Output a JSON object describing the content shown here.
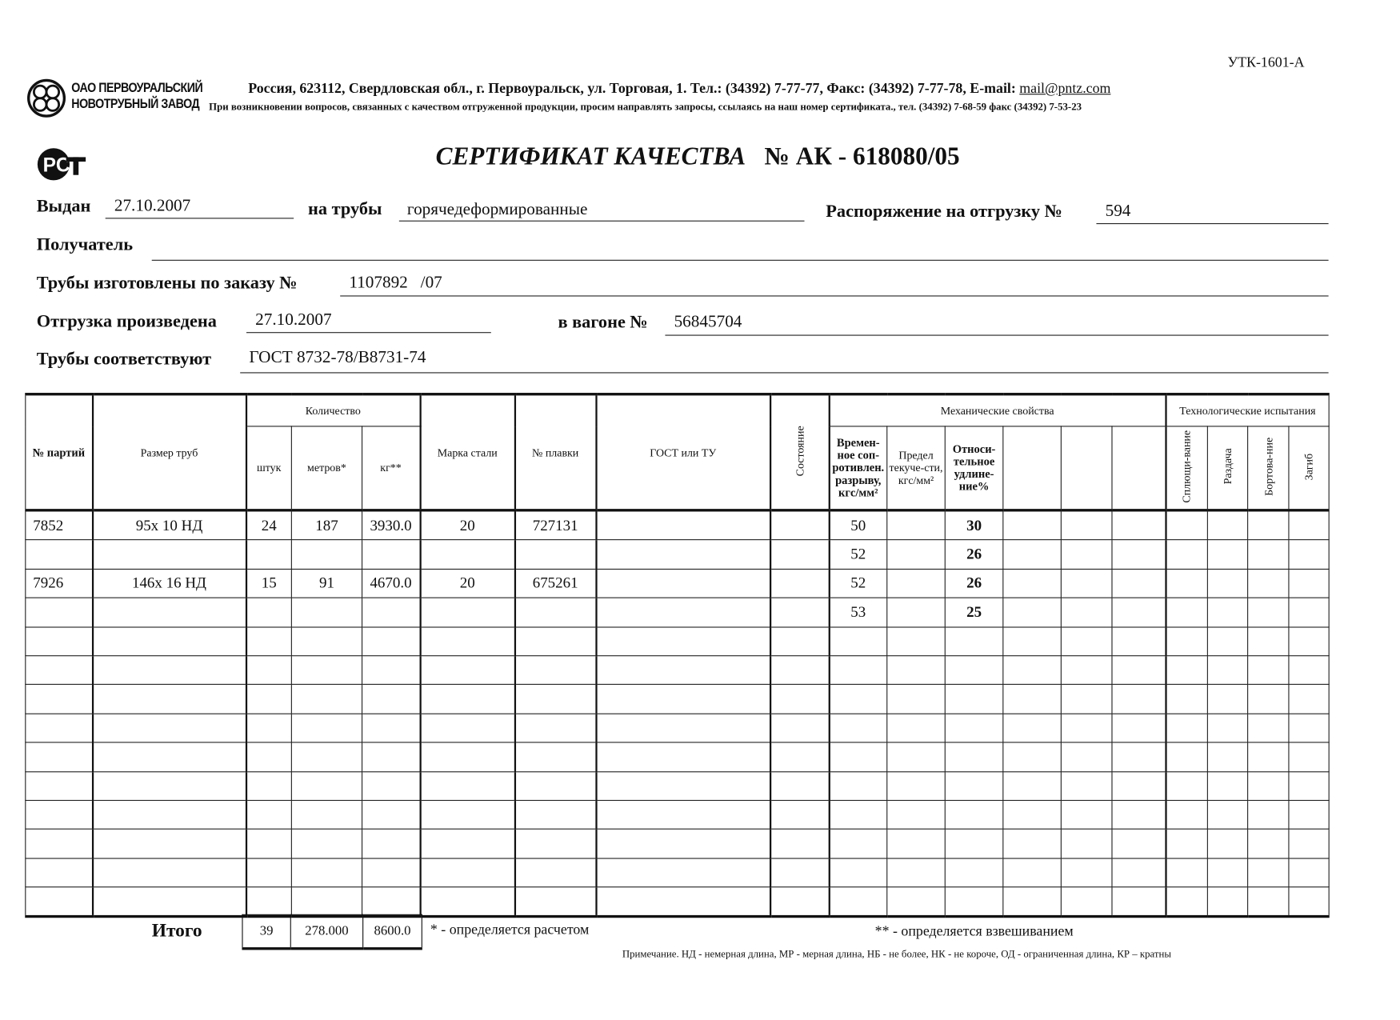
{
  "form_code": "УТК-1601-А",
  "company": {
    "line1": "ОАО ПЕРВОУРАЛЬСКИЙ",
    "line2": "НОВОТРУБНЫЙ  ЗАВОД"
  },
  "address": "Россия, 623112, Свердловская обл., г. Первоуральск, ул. Торговая, 1. Тел.: (34392) 7-77-77, Факс: (34392) 7-77-78,  E-mail: ",
  "email": "mail@pntz.com",
  "notice": "При возникновении вопросов, связанных с качеством отгруженной продукции, просим направлять запросы, ссылаясь на наш номер сертификата., тел. (34392) 7-68-59 факс (34392) 7-53-23",
  "logo_text": "PCT",
  "title": {
    "text": "СЕРТИФИКАТ КАЧЕСТВА",
    "number_prefix": "№  АК -",
    "number": "618080/05"
  },
  "fields": {
    "issued_label": "Выдан",
    "issued": "27.10.2007",
    "pipes_label": "на трубы",
    "pipes": "горячедеформированные",
    "order_label": "Распоряжение на отгрузку №",
    "order": "594",
    "recipient_label": "Получатель",
    "recipient": "",
    "made_label": "Трубы изготовлены по заказу №",
    "made": "1107892   /07",
    "shipped_label": "Отгрузка произведена",
    "shipped": "27.10.2007",
    "wagon_label": "в вагоне №",
    "wagon": "56845704",
    "conform_label": "Трубы соответствуют",
    "conform": "ГОСТ 8732-78/В8731-74"
  },
  "table": {
    "headers": {
      "batch": "№ партий",
      "size": "Размер труб",
      "quantity": "Количество",
      "pcs": "штук",
      "meters": "метров*",
      "kg": "кг**",
      "steel": "Марка стали",
      "heat": "№ плавки",
      "gost": "ГОСТ или ТУ",
      "state": "Состояние",
      "mech": "Механические свойства",
      "tensile": "Времен-ное соп-ротивлен. разрыву, кгс/мм²",
      "yield": "Предел текуче-сти, кгс/мм²",
      "elong": "Относи-тельное удлине-ние%",
      "tech": "Технологические испытания",
      "flatten": "Сплющи-вание",
      "expand": "Раздача",
      "flange": "Бортова-ние",
      "bend": "Загиб"
    },
    "rows": [
      [
        "7852",
        "95x 10 НД",
        "24",
        "187",
        "3930.0",
        "20",
        "727131",
        "",
        "",
        "50",
        "",
        "30",
        "",
        "",
        "",
        "",
        "",
        "",
        ""
      ],
      [
        "",
        "",
        "",
        "",
        "",
        "",
        "",
        "",
        "",
        "52",
        "",
        "26",
        "",
        "",
        "",
        "",
        "",
        "",
        ""
      ],
      [
        "7926",
        "146x 16 НД",
        "15",
        "91",
        "4670.0",
        "20",
        "675261",
        "",
        "",
        "52",
        "",
        "26",
        "",
        "",
        "",
        "",
        "",
        "",
        ""
      ],
      [
        "",
        "",
        "",
        "",
        "",
        "",
        "",
        "",
        "",
        "53",
        "",
        "25",
        "",
        "",
        "",
        "",
        "",
        "",
        ""
      ],
      [
        "",
        "",
        "",
        "",
        "",
        "",
        "",
        "",
        "",
        "",
        "",
        "",
        "",
        "",
        "",
        "",
        "",
        "",
        ""
      ],
      [
        "",
        "",
        "",
        "",
        "",
        "",
        "",
        "",
        "",
        "",
        "",
        "",
        "",
        "",
        "",
        "",
        "",
        "",
        ""
      ],
      [
        "",
        "",
        "",
        "",
        "",
        "",
        "",
        "",
        "",
        "",
        "",
        "",
        "",
        "",
        "",
        "",
        "",
        "",
        ""
      ],
      [
        "",
        "",
        "",
        "",
        "",
        "",
        "",
        "",
        "",
        "",
        "",
        "",
        "",
        "",
        "",
        "",
        "",
        "",
        ""
      ],
      [
        "",
        "",
        "",
        "",
        "",
        "",
        "",
        "",
        "",
        "",
        "",
        "",
        "",
        "",
        "",
        "",
        "",
        "",
        ""
      ],
      [
        "",
        "",
        "",
        "",
        "",
        "",
        "",
        "",
        "",
        "",
        "",
        "",
        "",
        "",
        "",
        "",
        "",
        "",
        ""
      ],
      [
        "",
        "",
        "",
        "",
        "",
        "",
        "",
        "",
        "",
        "",
        "",
        "",
        "",
        "",
        "",
        "",
        "",
        "",
        ""
      ],
      [
        "",
        "",
        "",
        "",
        "",
        "",
        "",
        "",
        "",
        "",
        "",
        "",
        "",
        "",
        "",
        "",
        "",
        "",
        ""
      ],
      [
        "",
        "",
        "",
        "",
        "",
        "",
        "",
        "",
        "",
        "",
        "",
        "",
        "",
        "",
        "",
        "",
        "",
        "",
        ""
      ],
      [
        "",
        "",
        "",
        "",
        "",
        "",
        "",
        "",
        "",
        "",
        "",
        "",
        "",
        "",
        "",
        "",
        "",
        "",
        ""
      ]
    ]
  },
  "totals": {
    "label": "Итого",
    "pcs": "39",
    "meters": "278.000",
    "kg": "8600.0"
  },
  "footnote1": "* - определяется расчетом",
  "footnote2": "** - определяется взвешиванием",
  "note": "Примечание. НД - немерная длина, МР - мерная длина, НБ - не более, НК - не короче, ОД - ограниченная длина, КР – кратны"
}
